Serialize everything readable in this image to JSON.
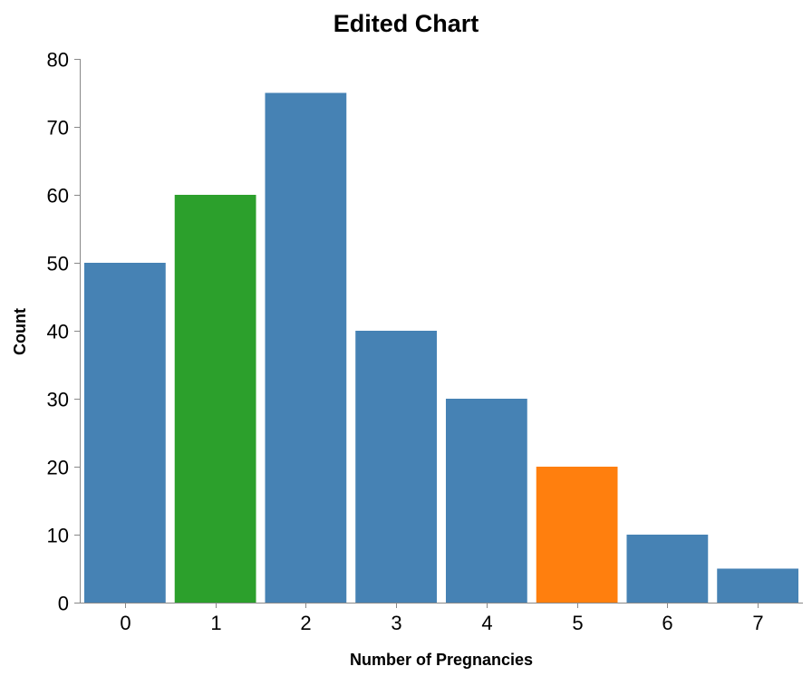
{
  "chart_data": {
    "type": "bar",
    "title": "Edited Chart",
    "xlabel": "Number of Pregnancies",
    "ylabel": "Count",
    "categories": [
      "0",
      "1",
      "2",
      "3",
      "4",
      "5",
      "6",
      "7"
    ],
    "values": [
      50,
      60,
      75,
      40,
      30,
      20,
      10,
      5
    ],
    "bar_colors": [
      "#4682b4",
      "#2ca02c",
      "#4682b4",
      "#4682b4",
      "#4682b4",
      "#ff7f0e",
      "#4682b4",
      "#4682b4"
    ],
    "ylim": [
      0,
      80
    ],
    "yticks": [
      0,
      10,
      20,
      30,
      40,
      50,
      60,
      70,
      80
    ],
    "grid": false,
    "legend": "none"
  }
}
